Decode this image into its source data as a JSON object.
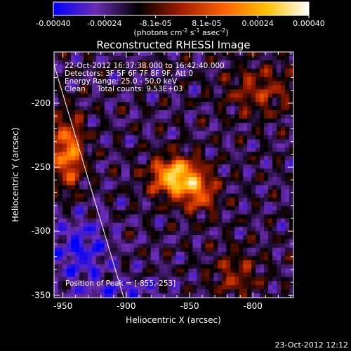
{
  "colorbar": {
    "labels": [
      "-0.00040",
      "-0.00024",
      "-8.1e-05",
      "8.1e-05",
      "0.00024",
      "0.00040"
    ],
    "units_main": "(photons cm",
    "units_sup1": "-2",
    "units_mid": " s",
    "units_sup2": "-1",
    "units_end": " asec",
    "units_sup3": "-2",
    "units_close": ")",
    "stops": [
      "#0000ff",
      "#6a2db0",
      "#000000",
      "#a11d00",
      "#ff6000",
      "#ffc000",
      "#ffffff"
    ]
  },
  "chart_data": {
    "type": "heatmap",
    "title": "Reconstructed RHESSI Image",
    "xlabel": "Heliocentric X (arcsec)",
    "ylabel": "Heliocentric Y (arcsec)",
    "xlim": [
      -957,
      -768
    ],
    "ylim": [
      -352,
      -160
    ],
    "xticks": [
      -950,
      -900,
      -850,
      -800
    ],
    "yticks": [
      -200,
      -250,
      -300,
      -350
    ],
    "peak": [
      -855,
      -253
    ],
    "limb_line": [
      [
        -960,
        -160
      ],
      [
        -902,
        -352
      ]
    ]
  },
  "annotations": {
    "time_range": "22-Oct-2012 16:37:38.000 to 16:42:40.000",
    "detectors": "Detectors: 3F 5F 6F 7F 8F 9F, Att 0",
    "energy": "Energy Range: 25.0 - 50.0 keV",
    "clean": "Clean     Total counts: 9.53E+03",
    "peak_label": "Position of Peak = [-855,-253]"
  },
  "timestamp": "23-Oct-2012 12:12"
}
